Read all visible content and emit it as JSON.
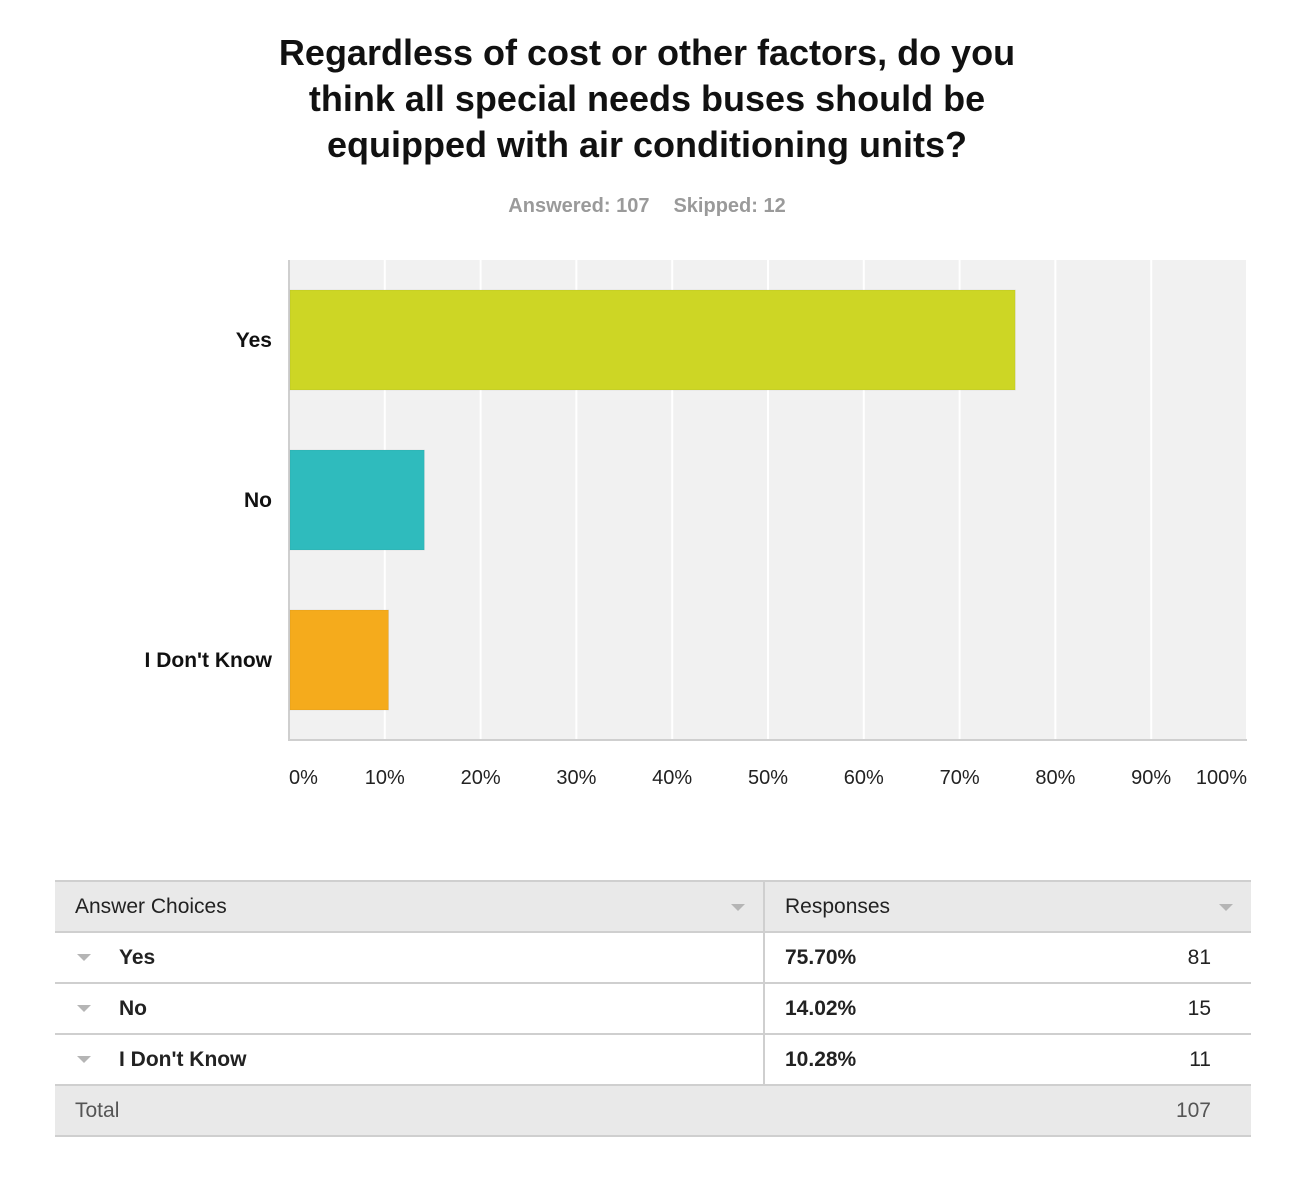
{
  "header": {
    "title_lines": [
      "Regardless of cost or other factors, do you",
      "think all special needs buses should be",
      "equipped with air conditioning units?"
    ],
    "answered": "Answered: 107",
    "skipped": "Skipped: 12"
  },
  "chart_data": {
    "type": "bar",
    "orientation": "horizontal",
    "title": "Regardless of cost or other factors, do you think all special needs buses should be equipped with air conditioning units?",
    "categories": [
      "Yes",
      "No",
      "I Don't Know"
    ],
    "values": [
      75.7,
      14.02,
      10.28
    ],
    "colors": [
      "#cdd625",
      "#2fbbbd",
      "#f5ab1c"
    ],
    "xlim": [
      0,
      100
    ],
    "xticks": [
      "0%",
      "10%",
      "20%",
      "30%",
      "40%",
      "50%",
      "60%",
      "70%",
      "80%",
      "90%",
      "100%"
    ],
    "grid": true
  },
  "table": {
    "headers": [
      "Answer Choices",
      "Responses"
    ],
    "rows": [
      {
        "choice": "Yes",
        "percent": "75.70%",
        "count": "81"
      },
      {
        "choice": "No",
        "percent": "14.02%",
        "count": "15"
      },
      {
        "choice": "I Don't Know",
        "percent": "10.28%",
        "count": "11"
      }
    ],
    "total_label": "Total",
    "total_value": "107"
  }
}
